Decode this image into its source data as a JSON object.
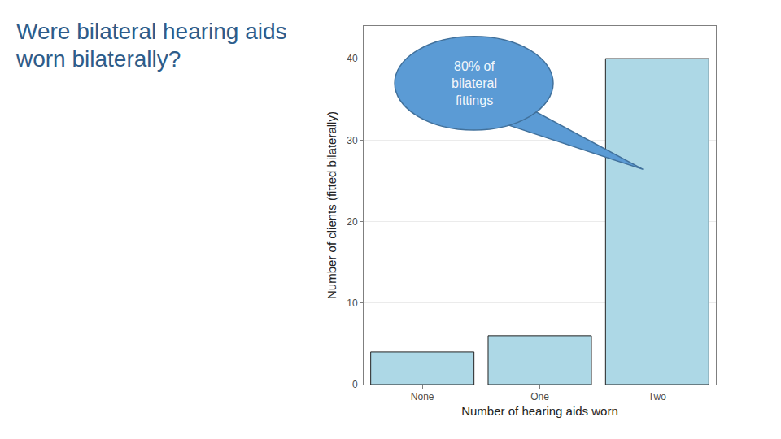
{
  "chart_data": {
    "type": "bar",
    "title": "Were bilateral hearing aids worn bilaterally?",
    "x_label": "Number of hearing aids worn",
    "y_label": "Number of clients (fitted bilaterally)",
    "categories": [
      "None",
      "One",
      "Two"
    ],
    "values": [
      4,
      6,
      40
    ],
    "color": "#add8e6",
    "ylim": [
      0,
      44
    ],
    "yticks": [
      0,
      10,
      20,
      30,
      40
    ],
    "grid": true,
    "annotations": [
      {
        "text": "80% of bilateral fittings",
        "category": "Two"
      }
    ]
  }
}
